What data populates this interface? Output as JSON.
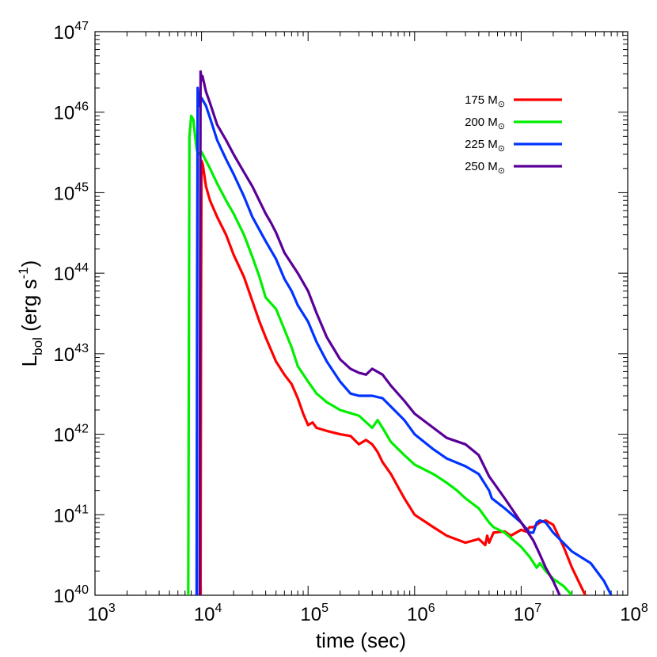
{
  "chart_data": {
    "type": "line",
    "title": "",
    "xlabel": "time (sec)",
    "ylabel": "L_bol (erg s^-1)",
    "ylabel_main": "L",
    "ylabel_sub": "bol",
    "ylabel_rest": " (erg s",
    "ylabel_sup": "-1",
    "ylabel_close": ")",
    "xscale": "log",
    "yscale": "log",
    "xlim": [
      1000,
      100000000
    ],
    "ylim": [
      1e+40,
      1e+47
    ],
    "x_tick_exponents": [
      3,
      4,
      5,
      6,
      7,
      8
    ],
    "y_tick_exponents": [
      40,
      41,
      42,
      43,
      44,
      45,
      46,
      47
    ],
    "tick_base": "10",
    "grid": false,
    "legend_position": "top-right",
    "legend_unit": "M",
    "legend_unit_sub": "⊙",
    "series": [
      {
        "name": "175",
        "color": "#ff0000",
        "x": [
          9800,
          9900,
          10000,
          10300,
          11000,
          12000,
          14000,
          17000,
          20000,
          25000,
          30000,
          35000,
          40000,
          50000,
          60000,
          70000,
          80000,
          90000,
          100000,
          110000,
          120000,
          150000,
          200000,
          250000,
          300000,
          350000,
          400000,
          450000,
          500000,
          600000,
          700000,
          800000,
          1000000,
          1500000,
          2000000,
          3000000,
          4000000,
          4600000,
          4800000,
          5000000,
          5500000,
          7000000,
          8000000,
          10000000,
          11000000,
          12000000,
          13000000,
          15000000,
          17000000,
          20000000,
          25000000,
          30000000,
          40000000
        ],
        "y": [
          1e+40,
          5e+43,
          2.5e+45,
          2.2e+45,
          1.2e+45,
          8e+44,
          5e+44,
          3e+44,
          1.7e+44,
          9e+43,
          4.5e+43,
          2.5e+43,
          1.6e+43,
          8e+42,
          5.5e+42,
          4.2e+42,
          2.8e+42,
          1.8e+42,
          1.3e+42,
          1.4e+42,
          1.2e+42,
          1.1e+42,
          1e+42,
          9.5e+41,
          7.5e+41,
          8.5e+41,
          7.5e+41,
          6e+41,
          4.5e+41,
          3.2e+41,
          2.2e+41,
          1.6e+41,
          1e+41,
          7e+40,
          5.5e+40,
          4.5e+40,
          5e+40,
          4.2e+40,
          5.5e+40,
          4.5e+40,
          6e+40,
          6.2e+40,
          5.5e+40,
          6.5e+40,
          6.2e+40,
          7e+40,
          7e+40,
          8e+40,
          8.5e+40,
          7.5e+40,
          4e+40,
          2.2e+40,
          1e+40
        ]
      },
      {
        "name": "200",
        "color": "#00ee00",
        "x": [
          7500,
          7700,
          8000,
          8400,
          8700,
          9000,
          9300,
          10000,
          11000,
          12000,
          14000,
          17000,
          20000,
          25000,
          30000,
          35000,
          40000,
          50000,
          60000,
          70000,
          80000,
          100000,
          120000,
          150000,
          200000,
          300000,
          400000,
          450000,
          500000,
          600000,
          800000,
          1000000,
          1500000,
          2000000,
          2500000,
          3000000,
          4000000,
          5000000,
          5500000,
          7000000,
          10000000,
          12000000,
          14000000,
          15000000,
          17000000,
          20000000,
          25000000,
          30000000
        ],
        "y": [
          1e+40,
          5e+45,
          9e+45,
          8e+45,
          5e+45,
          3.5e+45,
          3e+45,
          3.2e+45,
          2.5e+45,
          2e+45,
          1.3e+45,
          8e+44,
          5.5e+44,
          3e+44,
          1.6e+44,
          9e+43,
          5e+43,
          3.6e+43,
          2e+43,
          1.2e+43,
          7e+42,
          4.5e+42,
          3.2e+42,
          2.5e+42,
          2e+42,
          1.7e+42,
          1.2e+42,
          1.5e+42,
          1.2e+42,
          8e+41,
          5.5e+41,
          4.2e+41,
          3.2e+41,
          2.5e+41,
          2e+41,
          1.6e+41,
          1.2e+41,
          8e+40,
          7e+40,
          6e+40,
          4e+40,
          3e+40,
          2.2e+40,
          2.5e+40,
          2e+40,
          1.6e+40,
          1.3e+40,
          1e+40
        ]
      },
      {
        "name": "225",
        "color": "#0033ff",
        "x": [
          9000,
          9100,
          9200,
          9400,
          9600,
          10000,
          11000,
          12000,
          14000,
          17000,
          20000,
          25000,
          30000,
          40000,
          50000,
          60000,
          70000,
          80000,
          100000,
          120000,
          150000,
          200000,
          250000,
          300000,
          400000,
          500000,
          600000,
          800000,
          1000000,
          1500000,
          2000000,
          3000000,
          4000000,
          5000000,
          5300000,
          7000000,
          10000000,
          12000000,
          13000000,
          14000000,
          15000000,
          17000000,
          20000000,
          30000000,
          45000000,
          60000000,
          70000000
        ],
        "y": [
          1e+40,
          1e+44,
          2e+46,
          1.5e+46,
          1.2e+46,
          1.5e+46,
          1.2e+46,
          8.5e+45,
          4.5e+45,
          2.6e+45,
          1.7e+45,
          9e+44,
          5e+44,
          2.5e+44,
          1.5e+44,
          8.5e+43,
          6e+43,
          4e+43,
          2.5e+43,
          1.4e+43,
          8e+42,
          4.5e+42,
          3.2e+42,
          3e+42,
          3e+42,
          2.8e+42,
          2.2e+42,
          1.5e+42,
          1e+42,
          6.5e+41,
          5e+41,
          4e+41,
          3.2e+41,
          2e+41,
          1.6e+41,
          1.2e+41,
          8e+40,
          6e+40,
          6e+40,
          8e+40,
          8.5e+40,
          8e+40,
          6e+40,
          3.5e+40,
          2.5e+40,
          1.5e+40,
          1e+40
        ]
      },
      {
        "name": "250",
        "color": "#5a0099",
        "x": [
          9600,
          9700,
          9800,
          10000,
          10200,
          11000,
          12000,
          14000,
          17000,
          20000,
          25000,
          30000,
          40000,
          45000,
          50000,
          60000,
          80000,
          100000,
          120000,
          150000,
          200000,
          250000,
          300000,
          350000,
          400000,
          500000,
          600000,
          800000,
          1000000,
          1500000,
          2000000,
          3000000,
          4000000,
          5000000,
          7000000,
          10000000,
          13000000,
          15000000,
          17000000,
          20000000,
          23000000
        ],
        "y": [
          1e+40,
          1e+44,
          3.2e+46,
          2.5e+46,
          2.8e+46,
          1.8e+46,
          1.3e+46,
          7e+45,
          4.5e+45,
          3e+45,
          1.8e+45,
          1.2e+45,
          5.5e+44,
          4.2e+44,
          3.2e+44,
          1.8e+44,
          1e+44,
          6e+43,
          3.2e+43,
          1.6e+43,
          8.5e+42,
          6.5e+42,
          5.8e+42,
          5.5e+42,
          6.5e+42,
          5.5e+42,
          4e+42,
          2.6e+42,
          1.8e+42,
          1.2e+42,
          9e+41,
          7.5e+41,
          5.5e+41,
          3e+41,
          1.6e+41,
          8e+40,
          4.8e+40,
          3.2e+40,
          2.2e+40,
          1.5e+40,
          1e+40
        ]
      }
    ]
  }
}
